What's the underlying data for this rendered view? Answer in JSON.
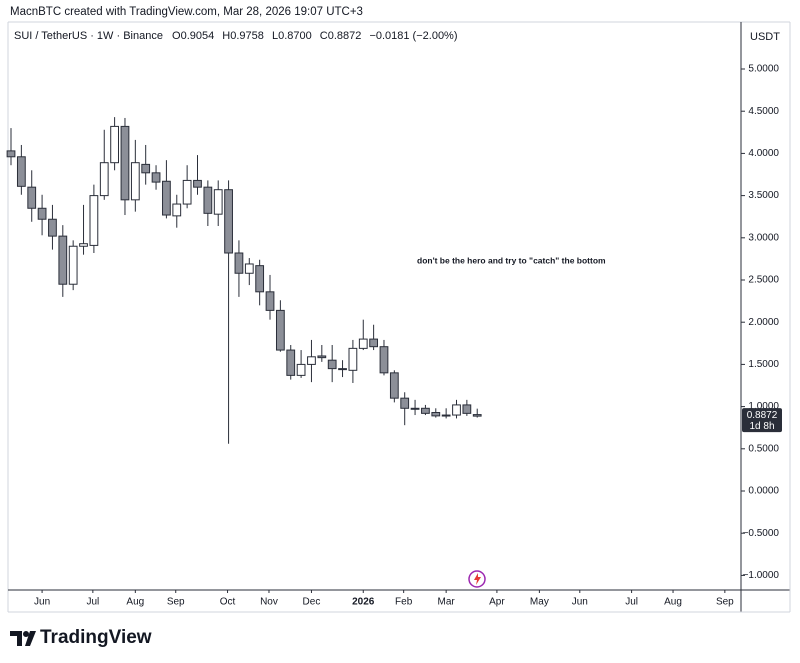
{
  "header": "MacnBTC created with TradingView.com, Mar 28, 2026 19:07 UTC+3",
  "footer_brand": "TradingView",
  "chart_data": {
    "type": "candlestick",
    "legend": {
      "symbol": "SUI / TetherUS · 1W · Binance",
      "open": "O0.9054",
      "high": "H0.9758",
      "low": "L0.8700",
      "close": "C0.8872",
      "change": "−0.0181 (−2.00%)"
    },
    "annotation": "don't be the hero and try to \"catch\" the bottom",
    "y_axis_label": "USDT",
    "last_price_label": "0.8872",
    "countdown": "1d 8h",
    "up_color": "#ffffff",
    "down_color": "#8c8f98",
    "outline_color": "#2a2e39",
    "x": [
      0,
      1,
      2,
      3,
      4,
      5,
      6,
      7,
      8,
      9,
      10,
      11,
      12,
      13,
      14,
      15,
      16,
      17,
      18,
      19,
      20,
      21,
      22,
      23,
      24,
      25,
      26,
      27,
      28,
      29,
      30,
      31,
      32,
      33,
      34,
      35,
      36,
      37,
      38,
      39,
      40,
      41,
      42,
      43,
      44,
      45
    ],
    "open": [
      4.03,
      3.96,
      3.6,
      3.35,
      3.22,
      3.02,
      2.45,
      2.9,
      2.91,
      3.5,
      3.89,
      4.32,
      3.45,
      3.87,
      3.77,
      3.67,
      3.26,
      3.4,
      3.68,
      3.6,
      3.28,
      3.57,
      2.82,
      2.58,
      2.67,
      2.36,
      2.14,
      1.67,
      1.37,
      1.5,
      1.6,
      1.55,
      1.44,
      1.43,
      1.69,
      1.8,
      1.71,
      1.4,
      1.1,
      0.97,
      0.98,
      0.93,
      0.89,
      0.9,
      1.02,
      0.9054
    ],
    "high": [
      4.3,
      4.1,
      3.8,
      3.51,
      3.39,
      3.15,
      2.97,
      3.39,
      3.63,
      4.28,
      4.43,
      4.42,
      4.16,
      4.1,
      3.86,
      3.92,
      3.51,
      3.86,
      3.98,
      3.68,
      3.68,
      3.68,
      2.97,
      2.76,
      2.74,
      2.56,
      2.26,
      1.73,
      1.67,
      1.79,
      1.73,
      1.73,
      1.55,
      1.79,
      2.03,
      1.97,
      1.79,
      1.43,
      1.17,
      1.08,
      1.02,
      0.98,
      0.98,
      1.08,
      1.08,
      0.9758
    ],
    "low": [
      3.86,
      3.51,
      3.19,
      3.03,
      2.86,
      2.3,
      2.38,
      2.8,
      2.82,
      3.45,
      3.8,
      3.27,
      3.31,
      3.63,
      3.57,
      3.23,
      3.12,
      3.35,
      3.51,
      3.14,
      3.14,
      0.56,
      2.3,
      2.44,
      2.2,
      2.03,
      1.65,
      1.32,
      1.34,
      1.29,
      1.53,
      1.29,
      1.35,
      1.28,
      1.67,
      1.67,
      1.37,
      1.05,
      0.78,
      0.9,
      0.9,
      0.87,
      0.86,
      0.86,
      0.89,
      0.87
    ],
    "close": [
      3.96,
      3.61,
      3.35,
      3.22,
      3.02,
      2.45,
      2.9,
      2.93,
      3.5,
      3.89,
      4.32,
      3.45,
      3.89,
      3.77,
      3.66,
      3.27,
      3.4,
      3.68,
      3.6,
      3.29,
      3.57,
      2.82,
      2.58,
      2.69,
      2.36,
      2.14,
      1.67,
      1.37,
      1.5,
      1.59,
      1.58,
      1.45,
      1.45,
      1.69,
      1.8,
      1.71,
      1.4,
      1.1,
      0.98,
      0.98,
      0.92,
      0.89,
      0.9,
      1.02,
      0.92,
      0.8872
    ],
    "xlim": [
      -0.29,
      70.46
    ],
    "xticks": [
      {
        "value": 3.0,
        "label": "Jun"
      },
      {
        "value": 7.9,
        "label": "Jul"
      },
      {
        "value": 12.0,
        "label": "Aug"
      },
      {
        "value": 15.9,
        "label": "Sep"
      },
      {
        "value": 20.9,
        "label": "Oct"
      },
      {
        "value": 24.9,
        "label": "Nov"
      },
      {
        "value": 29.0,
        "label": "Dec"
      },
      {
        "value": 34.0,
        "label": "2026"
      },
      {
        "value": 37.9,
        "label": "Feb"
      },
      {
        "value": 42.0,
        "label": "Mar"
      },
      {
        "value": 46.9,
        "label": "Apr"
      },
      {
        "value": 51.0,
        "label": "May"
      },
      {
        "value": 54.9,
        "label": "Jun"
      },
      {
        "value": 59.9,
        "label": "Jul"
      },
      {
        "value": 63.9,
        "label": "Aug"
      },
      {
        "value": 68.9,
        "label": "Sep"
      }
    ],
    "ylim": [
      -1.173,
      5.557
    ],
    "yticks": [
      {
        "value": 5,
        "label": "5.0000"
      },
      {
        "value": 4.5,
        "label": "4.5000"
      },
      {
        "value": 4,
        "label": "4.0000"
      },
      {
        "value": 3.5,
        "label": "3.5000"
      },
      {
        "value": 3,
        "label": "3.0000"
      },
      {
        "value": 2.5,
        "label": "2.5000"
      },
      {
        "value": 2,
        "label": "2.0000"
      },
      {
        "value": 1.5,
        "label": "1.5000"
      },
      {
        "value": 1,
        "label": "1.0000"
      },
      {
        "value": 0.5,
        "label": "0.5000"
      },
      {
        "value": 0,
        "label": "0.0000"
      },
      {
        "value": -0.5,
        "label": "−0.5000"
      },
      {
        "value": -1,
        "label": "−1.0000"
      }
    ]
  }
}
